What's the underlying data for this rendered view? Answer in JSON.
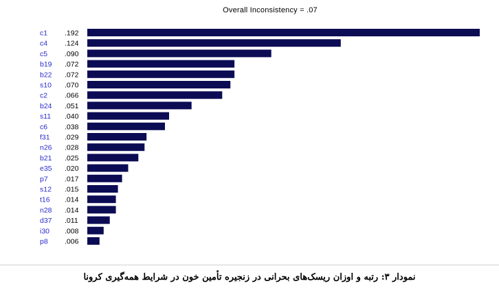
{
  "chart_data": {
    "type": "bar",
    "orientation": "horizontal",
    "title": "Overall Inconsistency = .07",
    "categories": [
      "c1",
      "c4",
      "c5",
      "b19",
      "b22",
      "s10",
      "c2",
      "b24",
      "s11",
      "c6",
      "f31",
      "n26",
      "b21",
      "e35",
      "p7",
      "s12",
      "t16",
      "n28",
      "d37",
      "i30",
      "p8"
    ],
    "values": [
      0.192,
      0.124,
      0.09,
      0.072,
      0.072,
      0.07,
      0.066,
      0.051,
      0.04,
      0.038,
      0.029,
      0.028,
      0.025,
      0.02,
      0.017,
      0.015,
      0.014,
      0.014,
      0.011,
      0.008,
      0.006
    ],
    "value_labels": [
      ".192",
      ".124",
      ".090",
      ".072",
      ".072",
      ".070",
      ".066",
      ".051",
      ".040",
      ".038",
      ".029",
      ".028",
      ".025",
      ".020",
      ".017",
      ".015",
      ".014",
      ".014",
      ".011",
      ".008",
      ".006"
    ],
    "xlim": [
      0,
      0.192
    ],
    "grid": false,
    "colors": {
      "bar": "#0c0c55",
      "category_label": "#2a2acf",
      "value_label": "#000000"
    }
  },
  "caption": "نمودار ۳: رتبه و اوزان ریسک‌های بحرانی در زنجیره تأمین خون در شرایط همه‌گیری کرونا"
}
